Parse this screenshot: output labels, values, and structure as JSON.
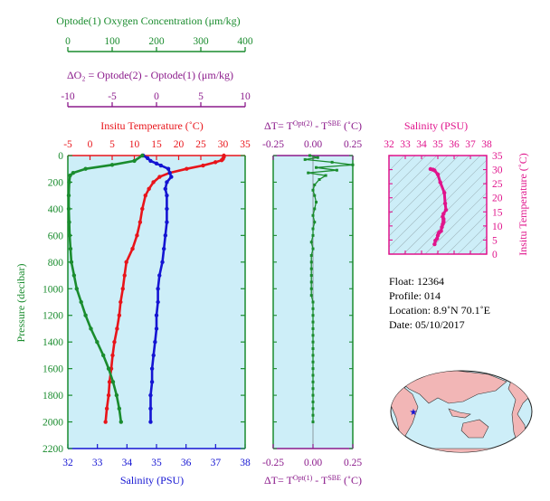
{
  "colors": {
    "oxygen": "#1a8c2e",
    "delta_o2": "#8b1a8b",
    "temperature": "#e8141a",
    "salinity": "#1414d2",
    "salinity_panel": "#e0148c",
    "panel_bg": "#cdeef8",
    "map_land": "#f2b6b6"
  },
  "top_axes": {
    "oxygen": {
      "label": "Optode(1) Oxygen Concentration (μm/kg)",
      "ticks": [
        "0",
        "100",
        "200",
        "300",
        "400"
      ]
    },
    "delta_o2": {
      "label": "ΔO₂ = Optode(2) - Optode(1)   (μm/kg)",
      "ticks": [
        "-10",
        "-5",
        "0",
        "5",
        "10"
      ]
    }
  },
  "main_panel": {
    "temp_label": "Insitu Temperature (˚C)",
    "temp_ticks": [
      "-5",
      "0",
      "5",
      "10",
      "15",
      "20",
      "25",
      "30",
      "35"
    ],
    "sal_label": "Salinity (PSU)",
    "sal_ticks": [
      "32",
      "33",
      "34",
      "35",
      "36",
      "37",
      "38"
    ],
    "pressure_label": "Pressure (decibar)",
    "pressure_ticks": [
      "0",
      "200",
      "400",
      "600",
      "800",
      "1000",
      "1200",
      "1400",
      "1600",
      "1800",
      "2000",
      "2200"
    ]
  },
  "dt_panel": {
    "top_label": "ΔT= T^Opt(2) - T^SBE (˚C)",
    "bottom_label": "ΔT= T^Opt(1) - T^SBE (˚C)",
    "ticks": [
      "-0.25",
      "0.00",
      "0.25"
    ]
  },
  "ts_panel": {
    "sal_label": "Salinity (PSU)",
    "sal_ticks": [
      "32",
      "33",
      "34",
      "35",
      "36",
      "37",
      "38"
    ],
    "temp_label": "Insitu Temperature (˚C)",
    "temp_ticks": [
      "0",
      "5",
      "10",
      "15",
      "20",
      "25",
      "30",
      "35"
    ]
  },
  "float_info": {
    "float": "Float:  12364",
    "profile": "Profile:  014",
    "location": "Location:  8.9˚N  70.1˚E",
    "date": "Date:  05/10/2017"
  },
  "chart_data": [
    {
      "type": "line",
      "title": "",
      "ylabel": "Pressure (decibar)",
      "ylim": [
        2200,
        0
      ],
      "series": [
        {
          "name": "Insitu Temperature (˚C)",
          "xlim": [
            -5,
            35
          ],
          "points": [
            [
              30.2,
              0
            ],
            [
              30.2,
              10
            ],
            [
              30.0,
              25
            ],
            [
              29.7,
              35
            ],
            [
              28.3,
              50
            ],
            [
              25.5,
              75
            ],
            [
              21.8,
              100
            ],
            [
              18.0,
              130
            ],
            [
              15.7,
              160
            ],
            [
              14.3,
              200
            ],
            [
              13.3,
              250
            ],
            [
              12.5,
              300
            ],
            [
              11.8,
              400
            ],
            [
              11.3,
              500
            ],
            [
              10.6,
              600
            ],
            [
              9.6,
              700
            ],
            [
              8.2,
              800
            ],
            [
              7.8,
              900
            ],
            [
              7.4,
              1000
            ],
            [
              6.9,
              1100
            ],
            [
              6.6,
              1200
            ],
            [
              6.1,
              1300
            ],
            [
              5.5,
              1400
            ],
            [
              5.1,
              1500
            ],
            [
              4.8,
              1600
            ],
            [
              4.4,
              1700
            ],
            [
              4.2,
              1800
            ],
            [
              3.8,
              1900
            ],
            [
              3.5,
              2000
            ]
          ]
        },
        {
          "name": "Salinity (PSU)",
          "xlim": [
            32,
            38
          ],
          "points": [
            [
              34.55,
              0
            ],
            [
              34.7,
              20
            ],
            [
              34.8,
              40
            ],
            [
              35.0,
              60
            ],
            [
              35.15,
              75
            ],
            [
              35.4,
              100
            ],
            [
              35.45,
              130
            ],
            [
              35.5,
              160
            ],
            [
              35.35,
              200
            ],
            [
              35.3,
              250
            ],
            [
              35.35,
              300
            ],
            [
              35.35,
              400
            ],
            [
              35.35,
              500
            ],
            [
              35.3,
              600
            ],
            [
              35.25,
              700
            ],
            [
              35.2,
              800
            ],
            [
              35.1,
              900
            ],
            [
              35.05,
              1000
            ],
            [
              35.05,
              1100
            ],
            [
              35.0,
              1200
            ],
            [
              35.0,
              1300
            ],
            [
              34.95,
              1400
            ],
            [
              34.9,
              1500
            ],
            [
              34.85,
              1600
            ],
            [
              34.85,
              1700
            ],
            [
              34.8,
              1800
            ],
            [
              34.8,
              1900
            ],
            [
              34.8,
              2000
            ]
          ]
        },
        {
          "name": "Optode(1) Oxygen Concentration (μm/kg)",
          "xlim": [
            0,
            400
          ],
          "points": [
            [
              168,
              0
            ],
            [
              150,
              40
            ],
            [
              100,
              70
            ],
            [
              40,
              100
            ],
            [
              12,
              130
            ],
            [
              5,
              150
            ],
            [
              3,
              200
            ],
            [
              2,
              300
            ],
            [
              2,
              400
            ],
            [
              3,
              500
            ],
            [
              4,
              600
            ],
            [
              6,
              700
            ],
            [
              8,
              800
            ],
            [
              14,
              900
            ],
            [
              20,
              1000
            ],
            [
              30,
              1100
            ],
            [
              40,
              1200
            ],
            [
              52,
              1300
            ],
            [
              66,
              1400
            ],
            [
              80,
              1500
            ],
            [
              92,
              1600
            ],
            [
              102,
              1700
            ],
            [
              110,
              1800
            ],
            [
              116,
              1900
            ],
            [
              120,
              2000
            ]
          ]
        }
      ]
    },
    {
      "type": "scatter",
      "title": "",
      "xlim": [
        -0.25,
        0.25
      ],
      "ylim": [
        2200,
        0
      ],
      "series": [
        {
          "name": "ΔT= T^Opt(1) - T^SBE (˚C)",
          "points": [
            [
              -0.02,
              0
            ],
            [
              0.03,
              15
            ],
            [
              -0.05,
              30
            ],
            [
              0.12,
              50
            ],
            [
              0.25,
              70
            ],
            [
              0.02,
              90
            ],
            [
              0.15,
              110
            ],
            [
              -0.03,
              130
            ],
            [
              0.08,
              150
            ],
            [
              0.04,
              180
            ],
            [
              0.01,
              220
            ],
            [
              0.0,
              260
            ],
            [
              0.01,
              300
            ],
            [
              0.02,
              350
            ],
            [
              0.01,
              400
            ],
            [
              0.0,
              450
            ],
            [
              0.01,
              500
            ],
            [
              0.0,
              550
            ],
            [
              0.0,
              600
            ],
            [
              -0.01,
              650
            ],
            [
              0.0,
              700
            ],
            [
              -0.01,
              750
            ],
            [
              -0.01,
              800
            ],
            [
              -0.01,
              850
            ],
            [
              -0.01,
              900
            ],
            [
              -0.01,
              950
            ],
            [
              -0.01,
              1000
            ],
            [
              -0.01,
              1050
            ],
            [
              0.0,
              1100
            ],
            [
              0.0,
              1150
            ],
            [
              0.0,
              1200
            ],
            [
              0.0,
              1250
            ],
            [
              0.0,
              1300
            ],
            [
              0.0,
              1350
            ],
            [
              0.0,
              1400
            ],
            [
              0.0,
              1450
            ],
            [
              0.0,
              1500
            ],
            [
              0.0,
              1550
            ],
            [
              0.0,
              1600
            ],
            [
              0.0,
              1650
            ],
            [
              0.0,
              1700
            ],
            [
              0.0,
              1750
            ],
            [
              0.0,
              1800
            ],
            [
              0.0,
              1850
            ],
            [
              0.0,
              1900
            ],
            [
              0.0,
              1950
            ],
            [
              0.0,
              2000
            ]
          ]
        }
      ]
    },
    {
      "type": "scatter",
      "title": "",
      "xlabel": "Salinity (PSU)",
      "ylabel": "Insitu Temperature (˚C)",
      "xlim": [
        32,
        38
      ],
      "ylim": [
        0,
        35
      ],
      "series": [
        {
          "name": "T-S",
          "points": [
            [
              34.8,
              3.5
            ],
            [
              34.85,
              4.8
            ],
            [
              34.95,
              5.5
            ],
            [
              35.0,
              6.6
            ],
            [
              35.05,
              7.4
            ],
            [
              35.1,
              7.8
            ],
            [
              35.2,
              8.2
            ],
            [
              35.25,
              9.6
            ],
            [
              35.3,
              10.6
            ],
            [
              35.35,
              11.3
            ],
            [
              35.35,
              11.8
            ],
            [
              35.35,
              12.5
            ],
            [
              35.3,
              13.3
            ],
            [
              35.35,
              14.3
            ],
            [
              35.5,
              15.7
            ],
            [
              35.45,
              18.0
            ],
            [
              35.4,
              21.8
            ],
            [
              35.15,
              25.5
            ],
            [
              35.0,
              28.3
            ],
            [
              34.8,
              29.7
            ],
            [
              34.7,
              30.0
            ],
            [
              34.55,
              30.2
            ]
          ]
        }
      ]
    }
  ]
}
